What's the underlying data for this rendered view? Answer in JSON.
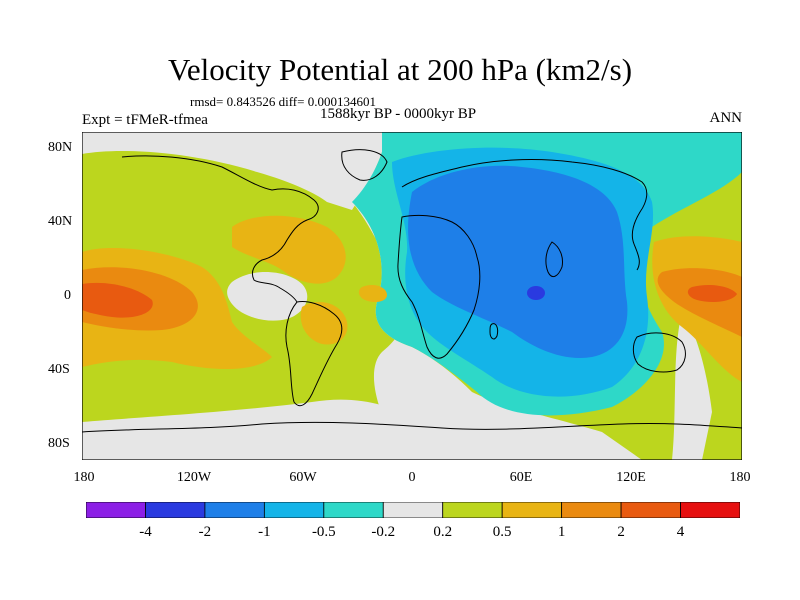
{
  "title": "Velocity Potential at 200 hPa (km2/s)",
  "stats_line": "rmsd= 0.843526 diff= 0.000134601",
  "period_line": "1588kyr BP - 0000kyr BP",
  "expt_label": "Expt = tFMeR-tfmea",
  "season_label": "ANN",
  "lat_labels": [
    "80N",
    "40N",
    "0",
    "40S",
    "80S"
  ],
  "lon_labels": [
    "180",
    "120W",
    "60W",
    "0",
    "60E",
    "120E",
    "180"
  ],
  "colorbar": {
    "labels": [
      "-4",
      "-2",
      "-1",
      "-0.5",
      "-0.2",
      "0.2",
      "0.5",
      "1",
      "2",
      "4"
    ],
    "colors": [
      "#8c1fe6",
      "#2a3ae0",
      "#1e7fe8",
      "#14b4e8",
      "#2ed8c8",
      "#e6e6e6",
      "#bcd61e",
      "#e8b414",
      "#ea8a10",
      "#e85a10",
      "#e61010"
    ]
  },
  "colors": {
    "neutral": "#e6e6e6",
    "teal": "#2ed8c8",
    "cyan": "#14b4e8",
    "blue": "#1e7fe8",
    "deepblue": "#2a3ae0",
    "yellowgreen": "#bcd61e",
    "gold": "#e8b414",
    "orange": "#ea8a10",
    "redorange": "#e85a10"
  }
}
